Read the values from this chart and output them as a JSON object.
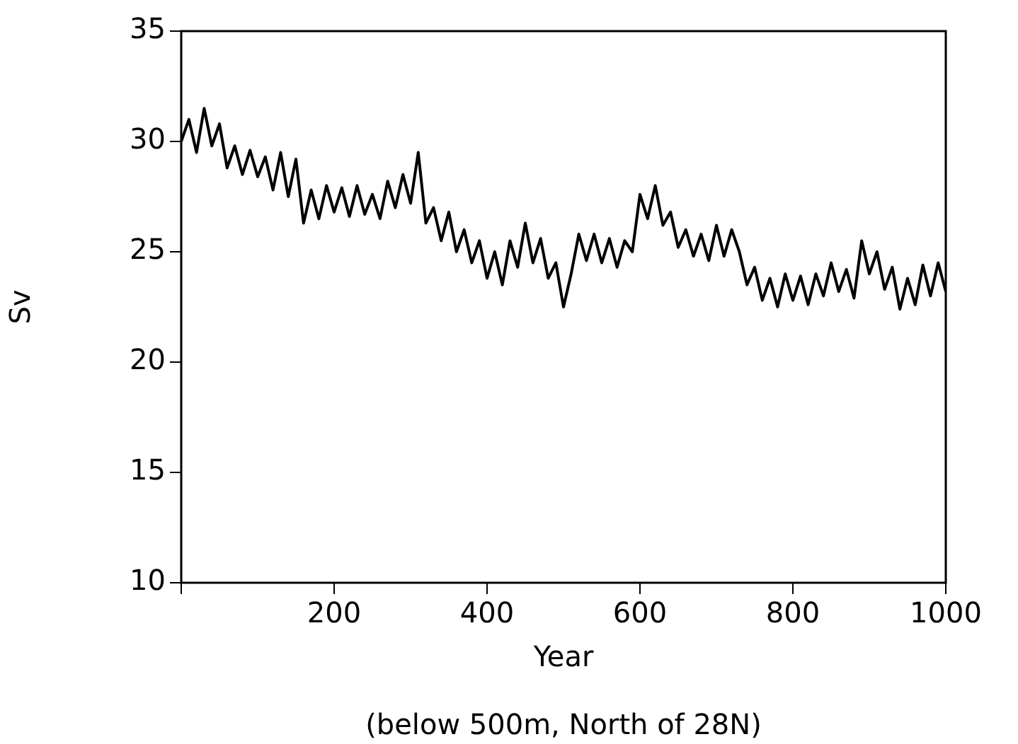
{
  "chart_data": {
    "type": "line",
    "xlabel": "Year",
    "ylabel": "Sv",
    "annotations": [
      "(below 500m, North of 28N)"
    ],
    "x": [
      0,
      10,
      20,
      30,
      40,
      50,
      60,
      70,
      80,
      90,
      100,
      110,
      120,
      130,
      140,
      150,
      160,
      170,
      180,
      190,
      200,
      210,
      220,
      230,
      240,
      250,
      260,
      270,
      280,
      290,
      300,
      310,
      320,
      330,
      340,
      350,
      360,
      370,
      380,
      390,
      400,
      410,
      420,
      430,
      440,
      450,
      460,
      470,
      480,
      490,
      500,
      510,
      520,
      530,
      540,
      550,
      560,
      570,
      580,
      590,
      600,
      610,
      620,
      630,
      640,
      650,
      660,
      670,
      680,
      690,
      700,
      710,
      720,
      730,
      740,
      750,
      760,
      770,
      780,
      790,
      800,
      810,
      820,
      830,
      840,
      850,
      860,
      870,
      880,
      890,
      900,
      910,
      920,
      930,
      940,
      950,
      960,
      970,
      980,
      990,
      1000
    ],
    "series": [
      {
        "color": "#000000",
        "values": [
          30.0,
          31.0,
          29.5,
          31.5,
          29.8,
          30.8,
          28.8,
          29.8,
          28.5,
          29.6,
          28.4,
          29.3,
          27.8,
          29.5,
          27.5,
          29.2,
          26.3,
          27.8,
          26.5,
          28.0,
          26.8,
          27.9,
          26.6,
          28.0,
          26.7,
          27.6,
          26.5,
          28.2,
          27.0,
          28.5,
          27.2,
          29.5,
          26.3,
          27.0,
          25.5,
          26.8,
          25.0,
          26.0,
          24.5,
          25.5,
          23.8,
          25.0,
          23.5,
          25.5,
          24.3,
          26.3,
          24.5,
          25.6,
          23.8,
          24.5,
          22.5,
          24.0,
          25.8,
          24.6,
          25.8,
          24.5,
          25.6,
          24.3,
          25.5,
          25.0,
          27.6,
          26.5,
          28.0,
          26.2,
          26.8,
          25.2,
          26.0,
          24.8,
          25.8,
          24.6,
          26.2,
          24.8,
          26.0,
          25.0,
          23.5,
          24.3,
          22.8,
          23.8,
          22.5,
          24.0,
          22.8,
          23.9,
          22.6,
          24.0,
          23.0,
          24.5,
          23.2,
          24.2,
          22.9,
          25.5,
          24.0,
          25.0,
          23.3,
          24.3,
          22.4,
          23.8,
          22.6,
          24.4,
          23.0,
          24.5,
          23.2
        ]
      }
    ],
    "xlim": [
      0,
      1000
    ],
    "xticks": [
      {
        "value": 0,
        "label": null
      },
      200,
      400,
      600,
      800,
      1000
    ],
    "ylim": [
      10,
      35
    ],
    "yticks": [
      10,
      15,
      20,
      25,
      30,
      35
    ],
    "grid": false,
    "legend": false,
    "marker": "none",
    "line_style": "solid"
  }
}
